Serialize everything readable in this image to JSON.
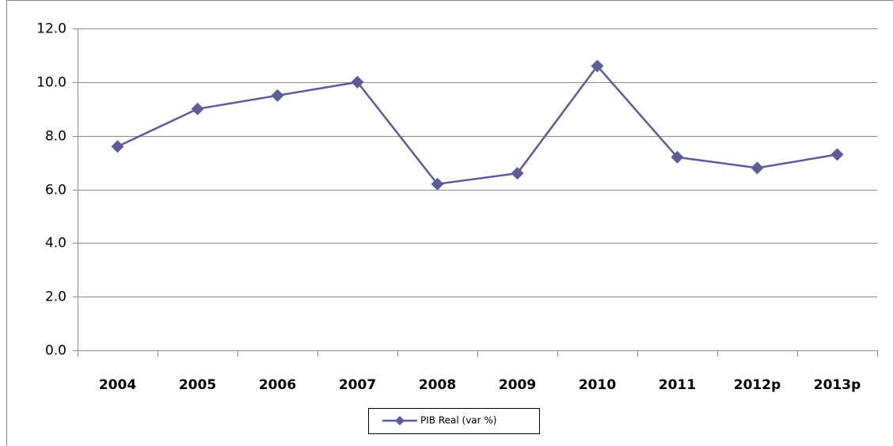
{
  "chart_data": {
    "type": "line",
    "categories": [
      "2004",
      "2005",
      "2006",
      "2007",
      "2008",
      "2009",
      "2010",
      "2011",
      "2012p",
      "2013p"
    ],
    "series": [
      {
        "name": "PIB Real (var %)",
        "color": "#5c5c99",
        "values": [
          7.6,
          9.0,
          9.5,
          10.0,
          6.2,
          6.6,
          10.6,
          7.2,
          6.8,
          7.3
        ]
      }
    ],
    "ylim": [
      0,
      12
    ],
    "yticks": [
      {
        "value": 0,
        "label": "0.0"
      },
      {
        "value": 2,
        "label": "2.0"
      },
      {
        "value": 4,
        "label": "4.0"
      },
      {
        "value": 6,
        "label": "6.0"
      },
      {
        "value": 8,
        "label": "8.0"
      },
      {
        "value": 10,
        "label": "10.0"
      },
      {
        "value": 12,
        "label": "12.0"
      }
    ],
    "grid": true,
    "legend": "bottom"
  }
}
